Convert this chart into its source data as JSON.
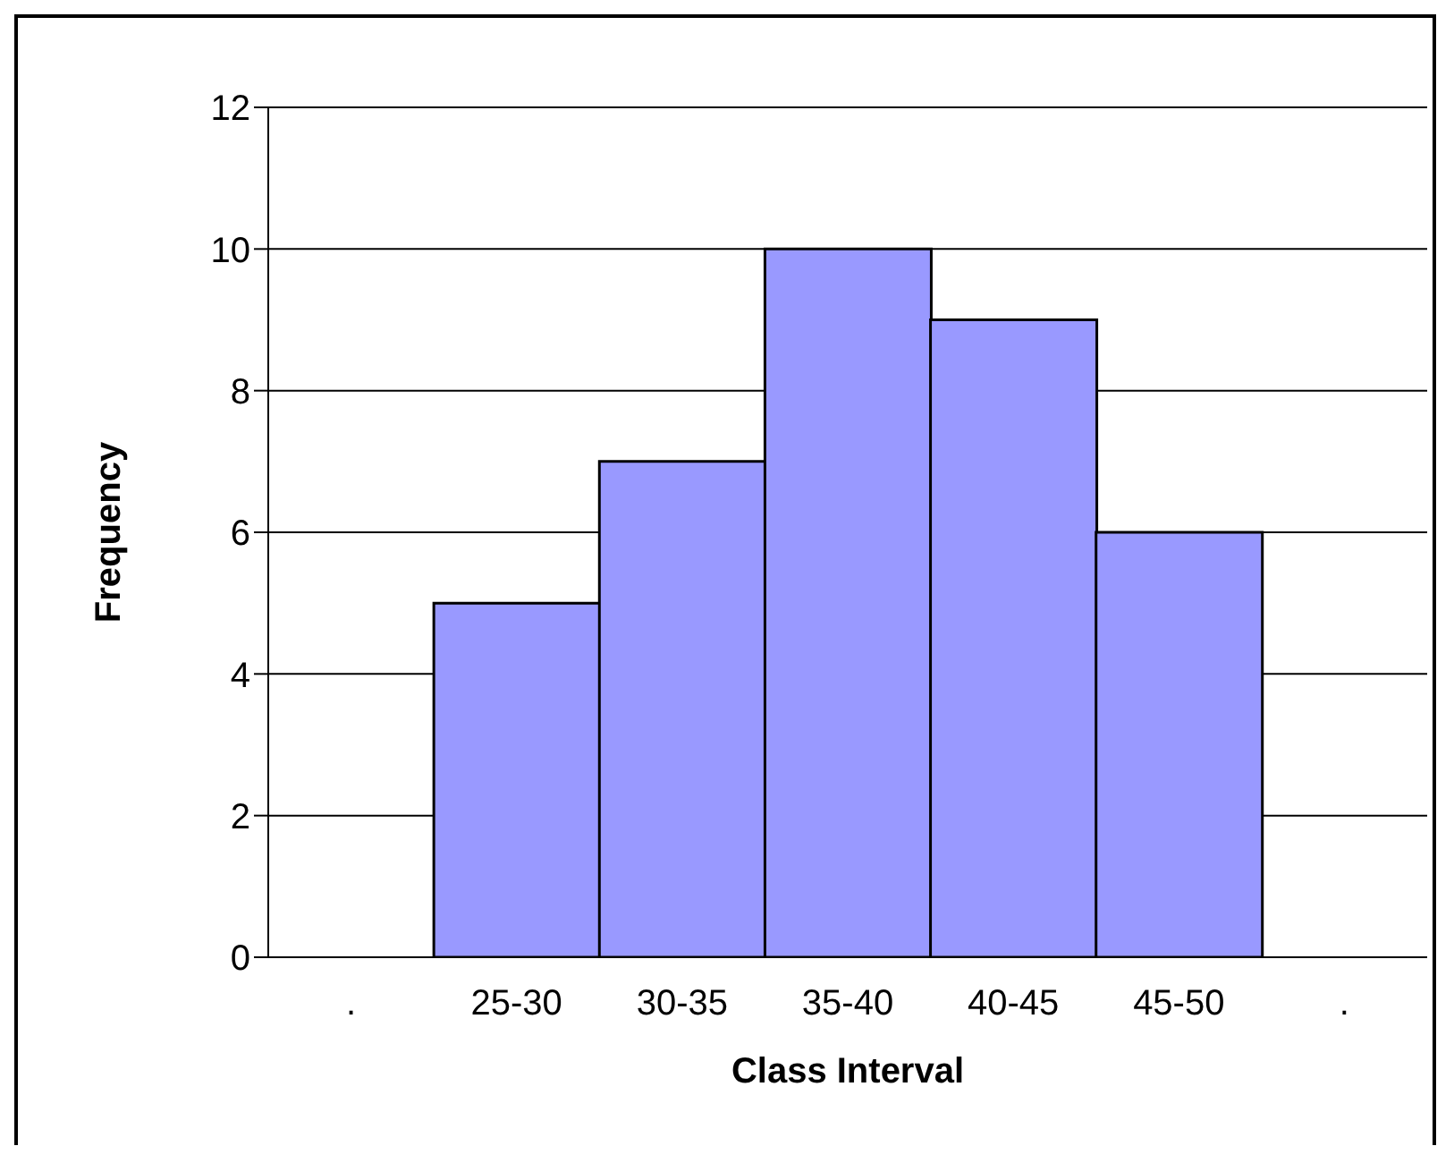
{
  "chart_data": {
    "type": "bar",
    "xlabel": "Class Interval",
    "ylabel": "Frequency",
    "categories": [
      ".",
      "25-30",
      "30-35",
      "35-40",
      "40-45",
      "45-50",
      "."
    ],
    "values": [
      null,
      5,
      7,
      10,
      9,
      6,
      null
    ],
    "color": "#9999ff",
    "ylim": [
      0,
      12
    ],
    "yticks": [
      0,
      2,
      4,
      6,
      8,
      10,
      12
    ],
    "grid": "y"
  }
}
